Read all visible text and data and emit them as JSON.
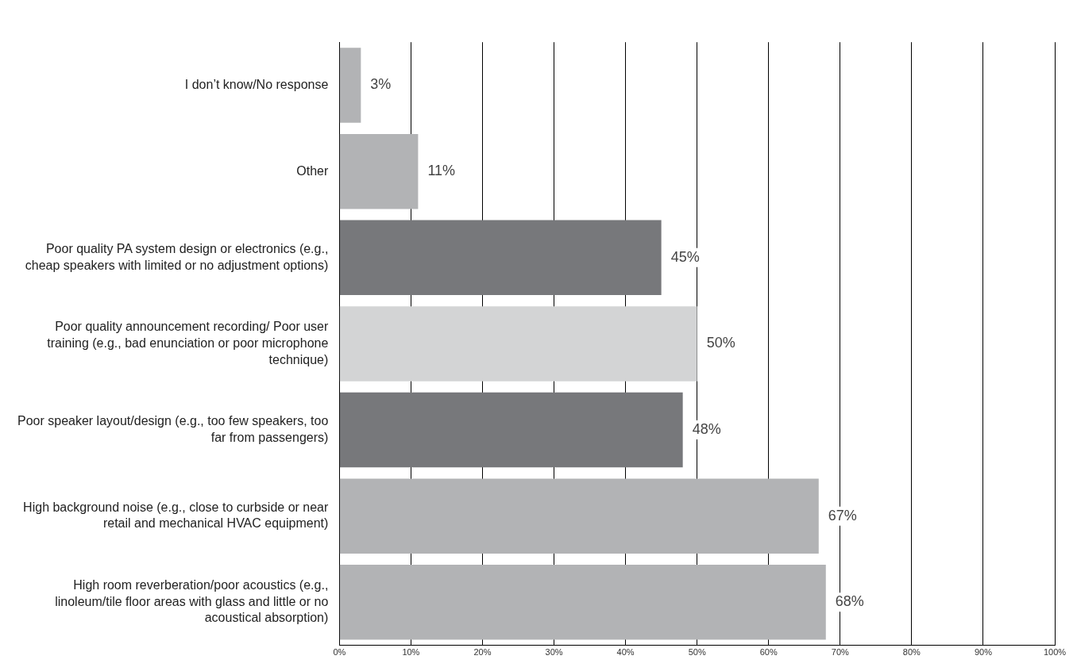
{
  "chart_data": {
    "type": "bar",
    "orientation": "horizontal",
    "categories": [
      "I don’t know/No response",
      "Other",
      "Poor quality PA system design or electronics (e.g., cheap speakers with limited or no adjustment options)",
      "Poor quality announcement recording/ Poor user training (e.g., bad enunciation or poor microphone technique)",
      "Poor speaker layout/design (e.g., too few speakers, too far from passengers)",
      "High background noise (e.g., close to curbside or near retail and mechanical HVAC equipment)",
      "High room reverberation/poor acoustics (e.g., linoleum/tile floor areas with glass and little or no acoustical absorption)"
    ],
    "values": [
      3,
      11,
      45,
      50,
      48,
      67,
      68
    ],
    "value_labels": [
      "3%",
      "11%",
      "45%",
      "50%",
      "48%",
      "67%",
      "68%"
    ],
    "colors": [
      "#b2b3b5",
      "#b2b3b5",
      "#77787b",
      "#d3d4d5",
      "#77787b",
      "#b2b3b5",
      "#b2b3b5"
    ],
    "xlim": [
      0,
      100
    ],
    "xticks": [
      {
        "value": 0,
        "label": "0%"
      },
      {
        "value": 10,
        "label": "10%"
      },
      {
        "value": 20,
        "label": "20%"
      },
      {
        "value": 30,
        "label": "30%"
      },
      {
        "value": 40,
        "label": "40%"
      },
      {
        "value": 50,
        "label": "50%"
      },
      {
        "value": 60,
        "label": "60%"
      },
      {
        "value": 70,
        "label": "70%"
      },
      {
        "value": 80,
        "label": "80%"
      },
      {
        "value": 90,
        "label": "90%"
      },
      {
        "value": 100,
        "label": "100%"
      }
    ],
    "grid": "x",
    "legend": false
  }
}
